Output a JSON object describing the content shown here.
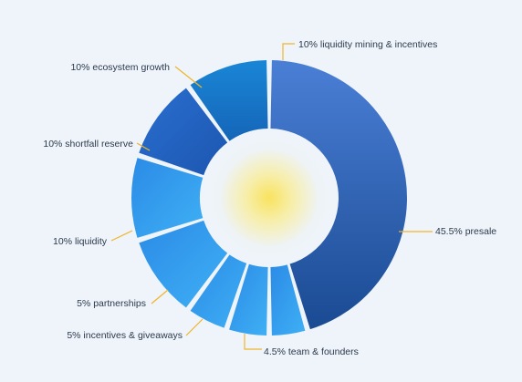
{
  "chart_data": {
    "type": "pie",
    "style": "donut",
    "slices": [
      {
        "label": "45.5% presale",
        "value": 45.5
      },
      {
        "label": "4.5% team & founders",
        "value": 4.5
      },
      {
        "label": "5% incentives & giveaways",
        "value": 5
      },
      {
        "label": "5% partnerships",
        "value": 5
      },
      {
        "label": "10% liquidity",
        "value": 10
      },
      {
        "label": "10% shortfall reserve",
        "value": 10
      },
      {
        "label": "10% ecosystem growth",
        "value": 10
      },
      {
        "label": "10% liquidity mining & incentives",
        "value": 10
      }
    ],
    "colors": {
      "leader_line": "#f0b429",
      "label_text": "#2c3a4c",
      "background": "#eef4fa",
      "center_glow": "#f8e46a",
      "presale_top": "#4a7fd6",
      "presale_bottom": "#1a4a92",
      "dark_blue": "#1f5fbf",
      "mid_blue": "#1e7fd0",
      "light_blue": "#3aa4f0"
    }
  }
}
